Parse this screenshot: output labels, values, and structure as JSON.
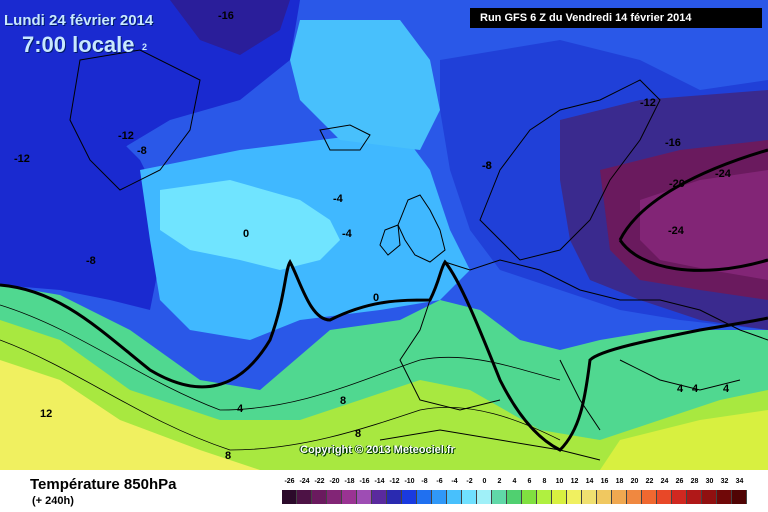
{
  "header": {
    "date": "Lundi 24 février 2014",
    "time": "7:00 locale",
    "run": "Run GFS 6 Z du Vendredi 14 février 2014"
  },
  "footer": {
    "title": "Température 850hPa",
    "subtitle": "(+ 240h)",
    "copyright": "Copyright © 2013 Meteociel.fr"
  },
  "contour_labels": [
    "-16",
    "2",
    "-12",
    "-12",
    "-8",
    "-12",
    "-8",
    "-16",
    "-20",
    "-24",
    "-24",
    "-8",
    "-4",
    "0",
    "-4",
    "-8",
    "0",
    "4",
    "8",
    "8",
    "8",
    "12",
    "4",
    "4",
    "4"
  ],
  "legend": {
    "values": [
      "-26",
      "-24",
      "-22",
      "-20",
      "-18",
      "-16",
      "-14",
      "-12",
      "-10",
      "-8",
      "-6",
      "-4",
      "-2",
      "0",
      "2",
      "4",
      "6",
      "8",
      "10",
      "12",
      "14",
      "16",
      "18",
      "20",
      "22",
      "24",
      "26",
      "28",
      "30",
      "32",
      "34"
    ],
    "colors": [
      "#2b0a2a",
      "#4d1245",
      "#6a1a5e",
      "#822576",
      "#9a3393",
      "#9e4db4",
      "#5a2a9e",
      "#2a2ab0",
      "#1a3ae0",
      "#2070f0",
      "#3098f8",
      "#48c0fc",
      "#70e0ff",
      "#a0f0f8",
      "#60d8a8",
      "#50d070",
      "#80e040",
      "#b0f040",
      "#d8f040",
      "#f0f060",
      "#f0e070",
      "#f0c860",
      "#f0a850",
      "#f08840",
      "#f06830",
      "#e84828",
      "#d02820",
      "#b01818",
      "#901010",
      "#700808",
      "#500404"
    ]
  },
  "colors": {
    "deep_cold": "#3a1a5a",
    "very_cold": "#1a2ad0",
    "cold": "#2a70f0",
    "cool": "#40b8ff",
    "near_zero": "#70e4ff",
    "mild": "#50d890",
    "warm": "#a8e840",
    "warmer": "#f0f060"
  }
}
